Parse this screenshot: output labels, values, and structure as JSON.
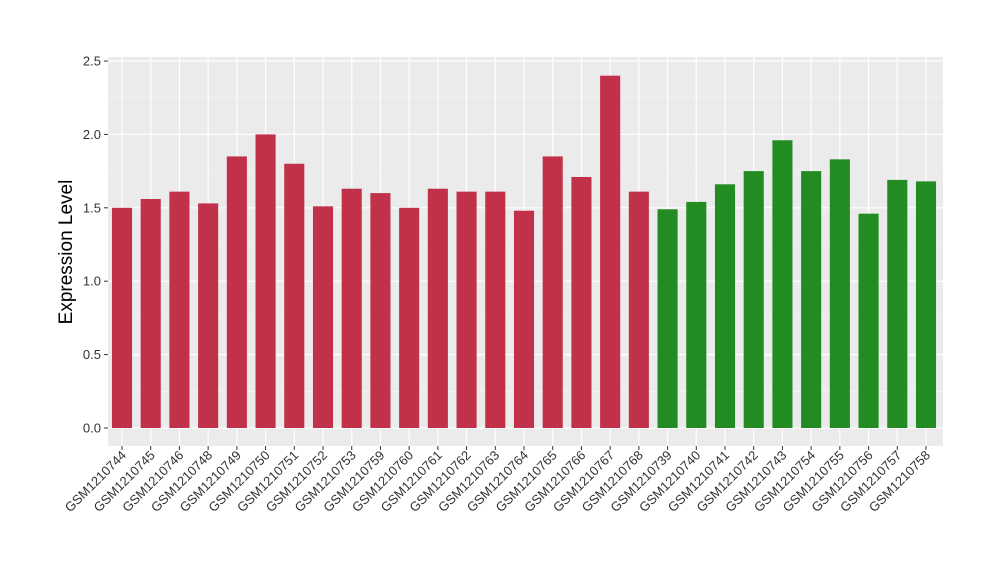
{
  "chart_data": {
    "type": "bar",
    "title": "",
    "xlabel": "",
    "ylabel": "Expression Level",
    "ylim": [
      0,
      2.5
    ],
    "yticks": [
      "0.0",
      "0.5",
      "1.0",
      "1.5",
      "2.0",
      "2.5"
    ],
    "grid": true,
    "legend": "none",
    "categories": [
      "GSM1210744",
      "GSM1210745",
      "GSM1210746",
      "GSM1210748",
      "GSM1210749",
      "GSM1210750",
      "GSM1210751",
      "GSM1210752",
      "GSM1210753",
      "GSM1210759",
      "GSM1210760",
      "GSM1210761",
      "GSM1210762",
      "GSM1210763",
      "GSM1210764",
      "GSM1210765",
      "GSM1210766",
      "GSM1210767",
      "GSM1210768",
      "GSM1210739",
      "GSM1210740",
      "GSM1210741",
      "GSM1210742",
      "GSM1210743",
      "GSM1210754",
      "GSM1210755",
      "GSM1210756",
      "GSM1210757",
      "GSM1210758"
    ],
    "values": [
      1.5,
      1.56,
      1.61,
      1.53,
      1.85,
      2.0,
      1.8,
      1.51,
      1.63,
      1.6,
      1.5,
      1.63,
      1.61,
      1.61,
      1.48,
      1.85,
      1.71,
      2.4,
      1.61,
      1.49,
      1.54,
      1.66,
      1.75,
      1.96,
      1.75,
      1.83,
      1.46,
      1.69,
      1.68
    ],
    "groups": [
      0,
      0,
      0,
      0,
      0,
      0,
      0,
      0,
      0,
      0,
      0,
      0,
      0,
      0,
      0,
      0,
      0,
      0,
      0,
      1,
      1,
      1,
      1,
      1,
      1,
      1,
      1,
      1,
      1
    ],
    "group_colors": [
      "#c1314a",
      "#228b22"
    ]
  }
}
